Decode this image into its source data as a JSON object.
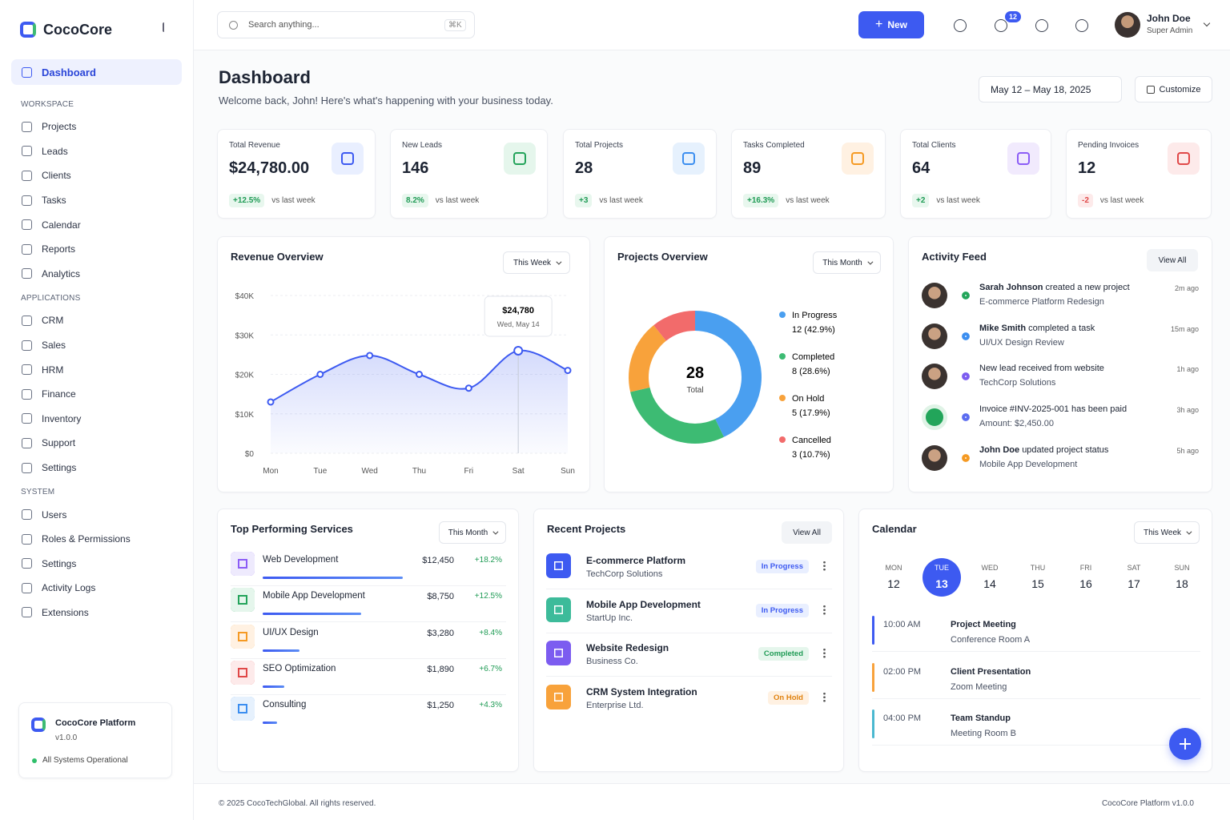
{
  "sidebar": {
    "brand": "CocoCore",
    "active": "Dashboard",
    "sections": [
      {
        "title": "WORKSPACE",
        "items": [
          "Projects",
          "Leads",
          "Clients",
          "Tasks",
          "Calendar",
          "Reports",
          "Analytics"
        ]
      },
      {
        "title": "APPLICATIONS",
        "items": [
          "CRM",
          "Sales",
          "HRM",
          "Finance",
          "Inventory",
          "Support",
          "Settings"
        ]
      },
      {
        "title": "SYSTEM",
        "items": [
          "Users",
          "Roles & Permissions",
          "Settings",
          "Activity Logs",
          "Extensions"
        ]
      }
    ],
    "platform": {
      "name": "CocoCore Platform",
      "version": "v1.0.0",
      "status": "All Systems Operational"
    }
  },
  "header": {
    "search": "Search anything...",
    "shortcut": "⌘K",
    "new_button": "New",
    "notifications": "12",
    "user": {
      "name": "John Doe",
      "role": "Super Admin"
    }
  },
  "page": {
    "title": "Dashboard",
    "subtitle": "Welcome back, John! Here's what's happening with your business today.",
    "date_range": "May 12 – May 18, 2025",
    "customize": "Customize"
  },
  "stats": [
    {
      "label": "Total Revenue",
      "value": "$24,780.00",
      "change": "+12.5%",
      "note": "vs last week"
    },
    {
      "label": "New Leads",
      "value": "146",
      "change": "8.2%",
      "note": "vs last week"
    },
    {
      "label": "Total Projects",
      "value": "28",
      "change": "+3",
      "note": "vs last week"
    },
    {
      "label": "Tasks Completed",
      "value": "89",
      "change": "+16.3%",
      "note": "vs last week"
    },
    {
      "label": "Total Clients",
      "value": "64",
      "change": "+2",
      "note": "vs last week"
    },
    {
      "label": "Pending Invoices",
      "value": "12",
      "change": "-2",
      "note": "vs last week"
    }
  ],
  "revenue_chart": {
    "type": "line",
    "title": "Revenue Overview",
    "filter": "This Week",
    "color": "#3d5af1",
    "categories": [
      "Mon",
      "Tue",
      "Wed",
      "Thu",
      "Fri",
      "Sat",
      "Sun"
    ],
    "values": [
      13000,
      20000,
      24780,
      20000,
      16500,
      26000,
      21000
    ],
    "ylim": [
      0,
      40000
    ],
    "yticks": [
      {
        "value": 0,
        "label": "$0"
      },
      {
        "value": 10000,
        "label": "$10K"
      },
      {
        "value": 20000,
        "label": "$20K"
      },
      {
        "value": 30000,
        "label": "$30K"
      },
      {
        "value": 40000,
        "label": "$40K"
      }
    ],
    "grid": true,
    "tooltip": {
      "title": "$24,780",
      "subtitle": "Wed, May 14"
    }
  },
  "projects_chart": {
    "type": "donut",
    "title": "Projects Overview",
    "filter": "This Month",
    "total": "28",
    "total_label": "Total",
    "categories": [
      "In Progress",
      "Completed",
      "On Hold",
      "Cancelled"
    ],
    "values": [
      12,
      8,
      5,
      3
    ],
    "value_labels": [
      "12 (42.9%)",
      "8 (28.6%)",
      "5 (17.9%)",
      "3 (10.7%)"
    ],
    "colors": [
      "#4a9ff0",
      "#3dbb73",
      "#f8a23b",
      "#f26b6b"
    ]
  },
  "activity": {
    "title": "Activity Feed",
    "view_all": "View All",
    "items": [
      {
        "user": "Sarah Johnson",
        "action": "created a new project",
        "detail": "E-commerce Platform Redesign",
        "time": "2m ago"
      },
      {
        "user": "Mike Smith",
        "action": "completed a task",
        "detail": "UI/UX Design Review",
        "time": "15m ago"
      },
      {
        "action": "New lead received from website",
        "detail": "TechCorp Solutions",
        "time": "1h ago"
      },
      {
        "action": "Invoice #INV-2025-001 has been paid",
        "detail": "Amount: $2,450.00",
        "time": "3h ago"
      },
      {
        "user": "John Doe",
        "action": "updated project status",
        "detail": "Mobile App Development",
        "time": "5h ago"
      }
    ]
  },
  "services": {
    "type": "bar",
    "title": "Top Performing Services",
    "filter": "This Month",
    "items": [
      {
        "name": "Web Development",
        "value": 12450,
        "value_label": "$12,450",
        "change": "+18.2%"
      },
      {
        "name": "Mobile App Development",
        "value": 8750,
        "value_label": "$8,750",
        "change": "+12.5%"
      },
      {
        "name": "UI/UX Design",
        "value": 3280,
        "value_label": "$3,280",
        "change": "+8.4%"
      },
      {
        "name": "SEO Optimization",
        "value": 1890,
        "value_label": "$1,890",
        "change": "+6.7%"
      },
      {
        "name": "Consulting",
        "value": 1250,
        "value_label": "$1,250",
        "change": "+4.3%"
      }
    ]
  },
  "projects": {
    "title": "Recent Projects",
    "view_all": "View All",
    "items": [
      {
        "name": "E-commerce Platform",
        "client": "TechCorp Solutions",
        "status": "In Progress"
      },
      {
        "name": "Mobile App Development",
        "client": "StartUp Inc.",
        "status": "In Progress"
      },
      {
        "name": "Website Redesign",
        "client": "Business Co.",
        "status": "Completed"
      },
      {
        "name": "CRM System Integration",
        "client": "Enterprise Ltd.",
        "status": "On Hold"
      }
    ]
  },
  "calendar": {
    "title": "Calendar",
    "filter": "This Week",
    "days": [
      {
        "name": "MON",
        "date": "12"
      },
      {
        "name": "TUE",
        "date": "13"
      },
      {
        "name": "WED",
        "date": "14"
      },
      {
        "name": "THU",
        "date": "15"
      },
      {
        "name": "FRI",
        "date": "16"
      },
      {
        "name": "SAT",
        "date": "17"
      },
      {
        "name": "SUN",
        "date": "18"
      }
    ],
    "events": [
      {
        "time": "10:00 AM",
        "title": "Project Meeting",
        "place": "Conference Room A"
      },
      {
        "time": "02:00 PM",
        "title": "Client Presentation",
        "place": "Zoom Meeting"
      },
      {
        "time": "04:00 PM",
        "title": "Team Standup",
        "place": "Meeting Room B"
      }
    ]
  },
  "footer": {
    "copyright": "© 2025 CocoTechGlobal. All rights reserved.",
    "version": "CocoCore Platform v1.0.0"
  }
}
